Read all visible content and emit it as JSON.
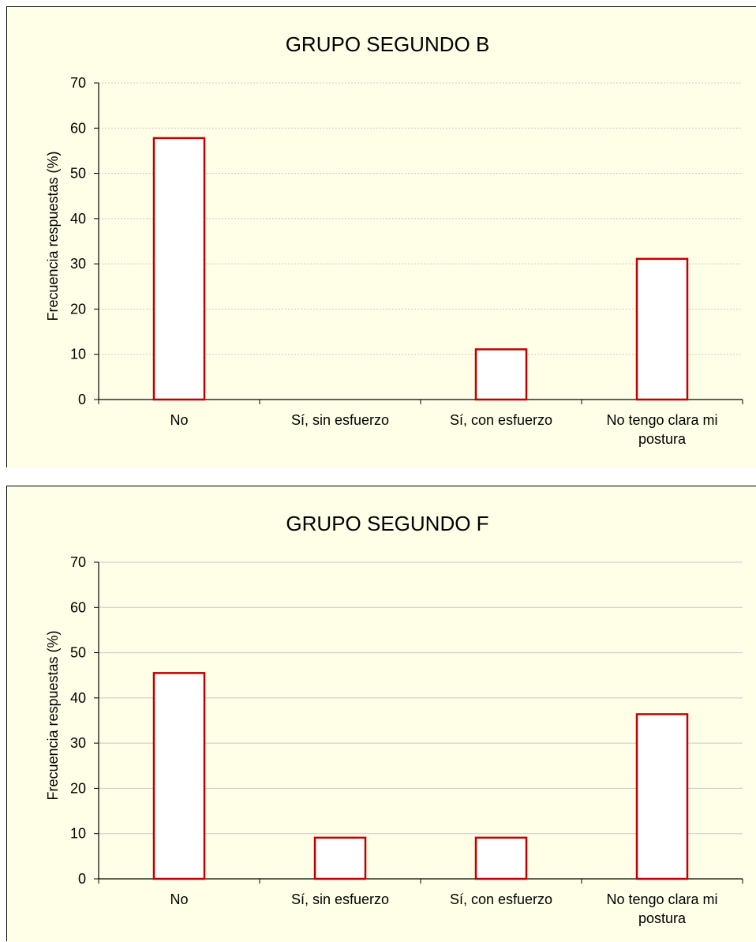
{
  "colors": {
    "plot_background": "#FFFFE8",
    "bar_outline": "#C00000",
    "bar_fill": "#FFFFFF",
    "gridline": "#C8C8C8"
  },
  "chart_data": [
    {
      "type": "bar",
      "title": "GRUPO SEGUNDO B",
      "xlabel": "",
      "ylabel": "Frecuencia respuestas (%)",
      "categories": [
        "No",
        "Sí, sin esfuerzo",
        "Sí, con esfuerzo",
        "No tengo clara mi postura"
      ],
      "category_lines": [
        [
          "No"
        ],
        [
          "Sí, sin esfuerzo"
        ],
        [
          "Sí, con esfuerzo"
        ],
        [
          "No tengo clara mi",
          "postura"
        ]
      ],
      "values": [
        57.8,
        0,
        11.1,
        31.1
      ],
      "ylim": [
        0,
        70
      ],
      "yticks": [
        0,
        10,
        20,
        30,
        40,
        50,
        60,
        70
      ],
      "grid": "dotted"
    },
    {
      "type": "bar",
      "title": "GRUPO SEGUNDO F",
      "xlabel": "",
      "ylabel": "Frecuencia respuestas (%)",
      "categories": [
        "No",
        "Sí, sin esfuerzo",
        "Sí, con esfuerzo",
        "No tengo clara mi postura"
      ],
      "category_lines": [
        [
          "No"
        ],
        [
          "Sí, sin esfuerzo"
        ],
        [
          "Sí, con esfuerzo"
        ],
        [
          "No tengo clara mi",
          "postura"
        ]
      ],
      "values": [
        45.5,
        9.1,
        9.1,
        36.4
      ],
      "ylim": [
        0,
        70
      ],
      "yticks": [
        0,
        10,
        20,
        30,
        40,
        50,
        60,
        70
      ],
      "grid": "solid"
    }
  ]
}
